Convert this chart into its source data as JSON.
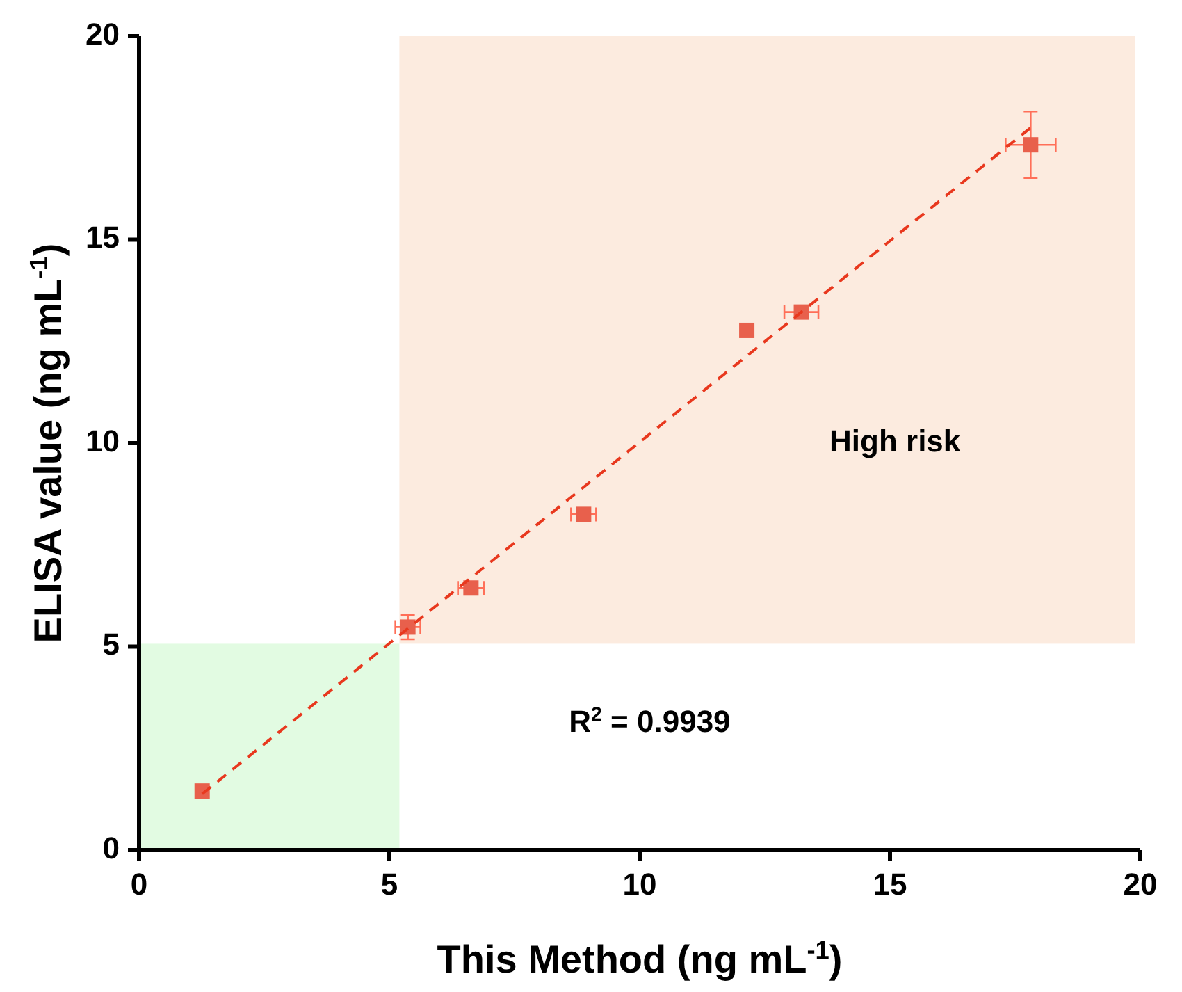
{
  "chart_data": {
    "type": "scatter",
    "xlabel": "This Method (ng mL$^{-1}$)",
    "ylabel": "ELISA value (ng mL$^{-1}$)",
    "xlim": [
      0,
      20
    ],
    "ylim": [
      0,
      20
    ],
    "xticks": [
      0,
      5,
      10,
      15,
      20
    ],
    "yticks": [
      0,
      5,
      10,
      15,
      20
    ],
    "grid": false,
    "marker": "square",
    "series": [
      {
        "color": "#e8604c",
        "x": [
          1.26,
          5.37,
          6.63,
          8.88,
          12.14,
          13.23,
          17.81
        ],
        "values": [
          1.45,
          5.48,
          6.44,
          8.25,
          12.77,
          13.22,
          17.33
        ],
        "xerrors": [
          null,
          0.25,
          0.26,
          0.25,
          null,
          0.34,
          0.5
        ],
        "errors": [
          null,
          0.3,
          null,
          null,
          null,
          null,
          0.82
        ]
      },
      {
        "type": "line",
        "color": "#e8381e",
        "line_style": "dashed",
        "marker": "none",
        "x": [
          1.26,
          17.81
        ],
        "values": [
          1.38,
          17.75
        ]
      }
    ],
    "bands": [
      {
        "axis": "x",
        "from": 0,
        "to": 5.2,
        "color": "#e2fbe2"
      },
      {
        "axis": "y",
        "from": 5.07,
        "to": 20,
        "color": "#fcebdf",
        "label": "High risk"
      }
    ],
    "annotations": [
      {
        "text": "R$^{2}$ = 0.9939"
      }
    ]
  }
}
